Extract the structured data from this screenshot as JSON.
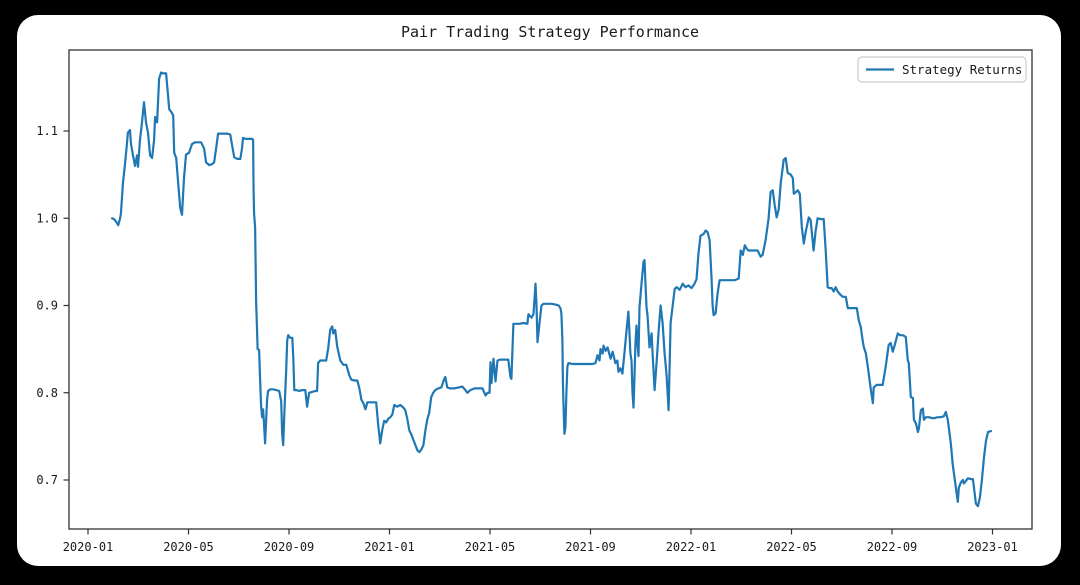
{
  "figure": {
    "background": "#000000",
    "panel_background": "#ffffff",
    "text_color": "#1a1a1a",
    "spine_color": "#333333"
  },
  "legend": {
    "label": "Strategy Returns",
    "position": "upper right",
    "line_color": "#1f77b4",
    "border_color": "#cccccc"
  },
  "chart_data": {
    "type": "line",
    "title": "Pair Trading Strategy Performance",
    "xlabel": "",
    "ylabel": "",
    "grid": false,
    "legend_position": "upper right",
    "x_unit": "months_since_2020-01",
    "xlim_months": [
      -0.76,
      37.57
    ],
    "ylim": [
      0.644,
      1.193
    ],
    "x_ticks": {
      "months": [
        0,
        4,
        8,
        12,
        16,
        20,
        24,
        28,
        32,
        36
      ],
      "labels": [
        "2020-01",
        "2020-05",
        "2020-09",
        "2021-01",
        "2021-05",
        "2021-09",
        "2022-01",
        "2022-05",
        "2022-09",
        "2023-01"
      ]
    },
    "y_ticks": [
      0.7,
      0.8,
      0.9,
      1.0,
      1.1
    ],
    "series": [
      {
        "name": "Strategy Returns",
        "color": "#1f77b4",
        "x": [
          0.96,
          1.04,
          1.12,
          1.2,
          1.27,
          1.31,
          1.39,
          1.47,
          1.55,
          1.59,
          1.67,
          1.71,
          1.79,
          1.87,
          1.95,
          1.99,
          2.07,
          2.15,
          2.23,
          2.31,
          2.39,
          2.47,
          2.55,
          2.63,
          2.67,
          2.75,
          2.83,
          2.91,
          2.99,
          3.11,
          3.19,
          3.23,
          3.31,
          3.39,
          3.43,
          3.51,
          3.59,
          3.67,
          3.74,
          3.82,
          3.9,
          4.02,
          4.14,
          4.26,
          4.38,
          4.5,
          4.62,
          4.7,
          4.82,
          4.94,
          5.02,
          5.1,
          5.18,
          5.3,
          5.42,
          5.54,
          5.66,
          5.74,
          5.82,
          5.94,
          6.06,
          6.13,
          6.17,
          6.29,
          6.41,
          6.53,
          6.57,
          6.59,
          6.61,
          6.65,
          6.67,
          6.69,
          6.73,
          6.75,
          6.81,
          6.85,
          6.89,
          6.93,
          6.97,
          7.01,
          7.05,
          7.09,
          7.13,
          7.17,
          7.25,
          7.37,
          7.49,
          7.61,
          7.69,
          7.73,
          7.77,
          7.81,
          7.85,
          7.89,
          7.93,
          7.97,
          8.05,
          8.13,
          8.17,
          8.21,
          8.29,
          8.41,
          8.53,
          8.65,
          8.72,
          8.8,
          8.92,
          9.04,
          9.12,
          9.16,
          9.24,
          9.36,
          9.48,
          9.56,
          9.64,
          9.72,
          9.76,
          9.84,
          9.92,
          10.04,
          10.16,
          10.28,
          10.4,
          10.48,
          10.6,
          10.72,
          10.8,
          10.88,
          10.96,
          11.04,
          11.12,
          11.23,
          11.35,
          11.47,
          11.55,
          11.59,
          11.63,
          11.71,
          11.79,
          11.87,
          11.95,
          12.03,
          12.11,
          12.19,
          12.31,
          12.43,
          12.55,
          12.63,
          12.71,
          12.79,
          12.87,
          12.95,
          13.03,
          13.11,
          13.19,
          13.27,
          13.35,
          13.43,
          13.51,
          13.58,
          13.66,
          13.74,
          13.82,
          13.94,
          14.06,
          14.18,
          14.22,
          14.3,
          14.42,
          14.58,
          14.74,
          14.9,
          15.02,
          15.1,
          15.22,
          15.38,
          15.54,
          15.7,
          15.82,
          15.9,
          15.98,
          16.02,
          16.06,
          16.14,
          16.22,
          16.3,
          16.41,
          16.57,
          16.73,
          16.81,
          16.85,
          16.93,
          17.01,
          17.17,
          17.33,
          17.49,
          17.53,
          17.65,
          17.73,
          17.81,
          17.85,
          17.89,
          17.97,
          18.05,
          18.13,
          18.29,
          18.45,
          18.61,
          18.73,
          18.8,
          18.84,
          18.88,
          18.9,
          18.92,
          18.96,
          19.0,
          19.04,
          19.08,
          19.12,
          19.28,
          19.44,
          19.6,
          19.76,
          19.92,
          20.08,
          20.2,
          20.28,
          20.36,
          20.4,
          20.48,
          20.52,
          20.6,
          20.68,
          20.8,
          20.88,
          20.99,
          21.07,
          21.11,
          21.19,
          21.27,
          21.35,
          21.43,
          21.51,
          21.55,
          21.59,
          21.63,
          21.67,
          21.71,
          21.75,
          21.79,
          21.83,
          21.87,
          21.91,
          21.95,
          22.03,
          22.11,
          22.15,
          22.23,
          22.27,
          22.35,
          22.43,
          22.47,
          22.55,
          22.63,
          22.71,
          22.79,
          22.87,
          22.95,
          23.03,
          23.11,
          23.19,
          23.27,
          23.35,
          23.43,
          23.55,
          23.67,
          23.78,
          23.9,
          24.02,
          24.14,
          24.22,
          24.3,
          24.38,
          24.5,
          24.58,
          24.66,
          24.74,
          24.82,
          24.86,
          24.9,
          24.98,
          25.06,
          25.14,
          25.26,
          25.42,
          25.58,
          25.74,
          25.9,
          25.98,
          26.06,
          26.14,
          26.22,
          26.29,
          26.41,
          26.53,
          26.65,
          26.77,
          26.85,
          26.97,
          27.09,
          27.17,
          27.25,
          27.33,
          27.41,
          27.49,
          27.57,
          27.69,
          27.77,
          27.85,
          27.97,
          28.05,
          28.09,
          28.17,
          28.25,
          28.33,
          28.41,
          28.49,
          28.57,
          28.69,
          28.76,
          28.84,
          28.88,
          28.96,
          29.04,
          29.16,
          29.28,
          29.36,
          29.44,
          29.52,
          29.6,
          29.68,
          29.76,
          29.84,
          29.96,
          30.04,
          30.16,
          30.24,
          30.36,
          30.48,
          30.6,
          30.68,
          30.76,
          30.84,
          30.88,
          30.96,
          31.04,
          31.16,
          31.24,
          31.27,
          31.39,
          31.51,
          31.63,
          31.75,
          31.87,
          31.95,
          32.03,
          32.11,
          32.23,
          32.31,
          32.43,
          32.55,
          32.63,
          32.67,
          32.75,
          32.83,
          32.87,
          32.95,
          33.03,
          33.07,
          33.15,
          33.23,
          33.27,
          33.35,
          33.47,
          33.59,
          33.7,
          33.82,
          33.94,
          34.06,
          34.14,
          34.22,
          34.34,
          34.42,
          34.54,
          34.62,
          34.66,
          34.74,
          34.82,
          34.86,
          34.94,
          35.02,
          35.14,
          35.22,
          35.26,
          35.34,
          35.42,
          35.5,
          35.58,
          35.66,
          35.74,
          35.82,
          35.94
        ],
        "values": [
          1.0,
          0.999,
          0.996,
          0.992,
          0.999,
          1.005,
          1.04,
          1.061,
          1.085,
          1.098,
          1.101,
          1.085,
          1.072,
          1.06,
          1.072,
          1.059,
          1.09,
          1.11,
          1.133,
          1.11,
          1.098,
          1.072,
          1.069,
          1.09,
          1.116,
          1.11,
          1.16,
          1.167,
          1.166,
          1.166,
          1.14,
          1.125,
          1.122,
          1.118,
          1.075,
          1.069,
          1.04,
          1.012,
          1.004,
          1.046,
          1.073,
          1.075,
          1.085,
          1.087,
          1.087,
          1.087,
          1.08,
          1.064,
          1.061,
          1.062,
          1.064,
          1.08,
          1.097,
          1.097,
          1.097,
          1.097,
          1.096,
          1.083,
          1.07,
          1.068,
          1.068,
          1.08,
          1.092,
          1.091,
          1.091,
          1.091,
          1.09,
          1.03,
          1.005,
          0.99,
          0.95,
          0.905,
          0.87,
          0.85,
          0.849,
          0.815,
          0.785,
          0.772,
          0.781,
          0.763,
          0.742,
          0.768,
          0.792,
          0.802,
          0.804,
          0.804,
          0.803,
          0.802,
          0.79,
          0.752,
          0.74,
          0.772,
          0.8,
          0.826,
          0.86,
          0.866,
          0.863,
          0.863,
          0.84,
          0.803,
          0.803,
          0.802,
          0.803,
          0.803,
          0.784,
          0.8,
          0.801,
          0.802,
          0.802,
          0.834,
          0.837,
          0.837,
          0.837,
          0.851,
          0.872,
          0.876,
          0.868,
          0.872,
          0.853,
          0.837,
          0.832,
          0.832,
          0.82,
          0.815,
          0.814,
          0.814,
          0.805,
          0.792,
          0.788,
          0.781,
          0.789,
          0.789,
          0.789,
          0.789,
          0.763,
          0.753,
          0.742,
          0.757,
          0.768,
          0.766,
          0.77,
          0.772,
          0.775,
          0.786,
          0.784,
          0.786,
          0.783,
          0.78,
          0.77,
          0.757,
          0.752,
          0.746,
          0.74,
          0.734,
          0.732,
          0.735,
          0.74,
          0.757,
          0.77,
          0.777,
          0.795,
          0.8,
          0.803,
          0.805,
          0.806,
          0.816,
          0.818,
          0.806,
          0.805,
          0.805,
          0.806,
          0.807,
          0.803,
          0.8,
          0.803,
          0.805,
          0.805,
          0.805,
          0.797,
          0.8,
          0.8,
          0.835,
          0.811,
          0.839,
          0.813,
          0.837,
          0.838,
          0.838,
          0.838,
          0.818,
          0.816,
          0.879,
          0.879,
          0.879,
          0.88,
          0.879,
          0.89,
          0.886,
          0.89,
          0.925,
          0.9,
          0.858,
          0.88,
          0.9,
          0.902,
          0.902,
          0.902,
          0.901,
          0.9,
          0.897,
          0.891,
          0.86,
          0.812,
          0.79,
          0.753,
          0.76,
          0.8,
          0.83,
          0.834,
          0.833,
          0.833,
          0.833,
          0.833,
          0.833,
          0.833,
          0.834,
          0.843,
          0.837,
          0.85,
          0.845,
          0.854,
          0.848,
          0.852,
          0.839,
          0.847,
          0.834,
          0.837,
          0.824,
          0.828,
          0.822,
          0.845,
          0.87,
          0.893,
          0.87,
          0.845,
          0.837,
          0.8,
          0.783,
          0.82,
          0.858,
          0.877,
          0.856,
          0.842,
          0.898,
          0.925,
          0.95,
          0.952,
          0.898,
          0.889,
          0.852,
          0.868,
          0.845,
          0.803,
          0.835,
          0.87,
          0.9,
          0.88,
          0.845,
          0.82,
          0.78,
          0.88,
          0.9,
          0.919,
          0.921,
          0.918,
          0.925,
          0.921,
          0.923,
          0.92,
          0.925,
          0.93,
          0.96,
          0.98,
          0.982,
          0.986,
          0.984,
          0.975,
          0.93,
          0.9,
          0.889,
          0.891,
          0.914,
          0.929,
          0.929,
          0.929,
          0.929,
          0.929,
          0.931,
          0.963,
          0.958,
          0.969,
          0.965,
          0.963,
          0.963,
          0.963,
          0.963,
          0.956,
          0.958,
          0.975,
          1.0,
          1.03,
          1.032,
          1.015,
          1.001,
          1.01,
          1.04,
          1.067,
          1.069,
          1.052,
          1.05,
          1.046,
          1.028,
          1.03,
          1.032,
          1.028,
          0.99,
          0.971,
          0.985,
          1.001,
          0.998,
          0.975,
          0.963,
          0.985,
          1.0,
          0.999,
          0.999,
          0.963,
          0.921,
          0.92,
          0.92,
          0.916,
          0.921,
          0.916,
          0.912,
          0.91,
          0.91,
          0.897,
          0.897,
          0.897,
          0.897,
          0.883,
          0.875,
          0.858,
          0.852,
          0.845,
          0.829,
          0.803,
          0.788,
          0.806,
          0.809,
          0.809,
          0.809,
          0.83,
          0.855,
          0.857,
          0.847,
          0.855,
          0.868,
          0.866,
          0.866,
          0.864,
          0.837,
          0.834,
          0.795,
          0.794,
          0.769,
          0.765,
          0.755,
          0.759,
          0.78,
          0.782,
          0.769,
          0.772,
          0.772,
          0.771,
          0.771,
          0.772,
          0.772,
          0.773,
          0.778,
          0.769,
          0.742,
          0.717,
          0.692,
          0.675,
          0.691,
          0.697,
          0.7,
          0.696,
          0.699,
          0.702,
          0.701,
          0.701,
          0.692,
          0.673,
          0.67,
          0.68,
          0.7,
          0.726,
          0.745,
          0.755,
          0.756
        ]
      }
    ]
  }
}
